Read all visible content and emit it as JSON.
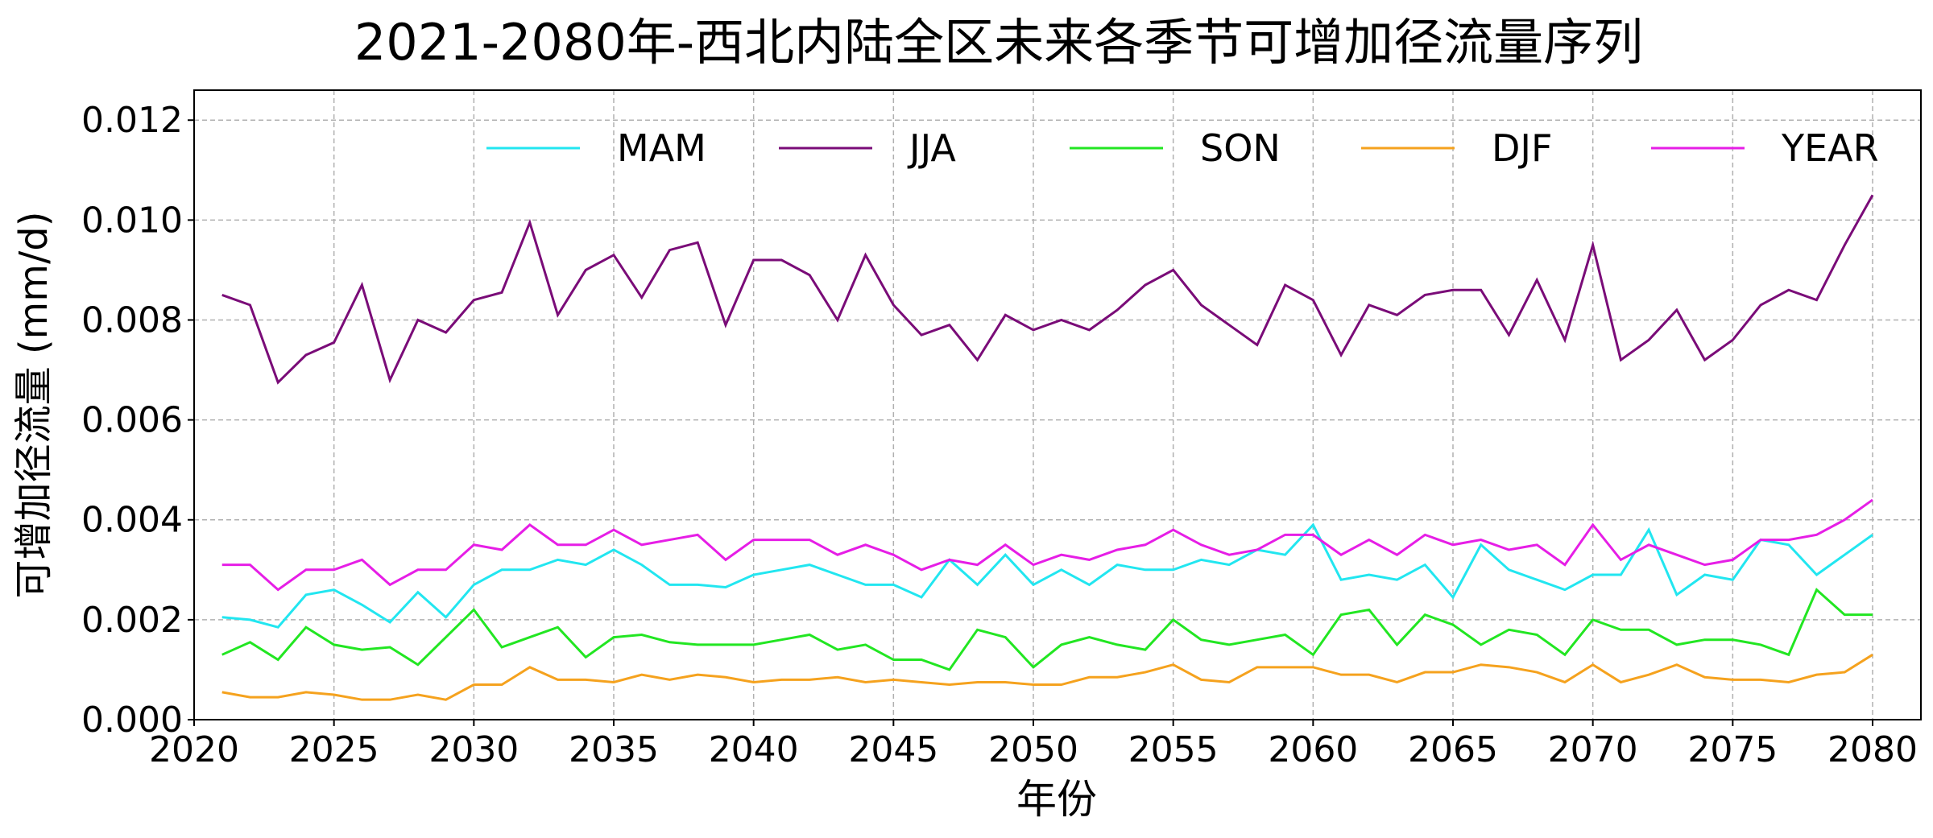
{
  "chart_data": {
    "type": "line",
    "title": "2021-2080年-西北内陆全区未来各季节可增加径流量序列",
    "xlabel": "年份",
    "ylabel": "可增加径流量 (mm/d)",
    "xlim": [
      2020,
      2082
    ],
    "ylim": [
      0,
      0.0126
    ],
    "xticks": [
      2020,
      2025,
      2030,
      2035,
      2040,
      2045,
      2050,
      2055,
      2060,
      2065,
      2070,
      2075,
      2080
    ],
    "yticks": [
      "0.000",
      "0.002",
      "0.004",
      "0.006",
      "0.008",
      "0.010",
      "0.012"
    ],
    "grid": true,
    "legend_position": "top",
    "x_start": 2021,
    "series": [
      {
        "name": "MAM",
        "color": "#22e6f0",
        "values": [
          0.00205,
          0.002,
          0.00185,
          0.0025,
          0.0026,
          0.0023,
          0.00195,
          0.00255,
          0.00205,
          0.0027,
          0.003,
          0.003,
          0.0032,
          0.0031,
          0.0034,
          0.0031,
          0.0027,
          0.0027,
          0.00265,
          0.0029,
          0.003,
          0.0031,
          0.0029,
          0.0027,
          0.0027,
          0.00245,
          0.0032,
          0.0027,
          0.0033,
          0.0027,
          0.003,
          0.0027,
          0.0031,
          0.003,
          0.003,
          0.0032,
          0.0031,
          0.0034,
          0.0033,
          0.0039,
          0.0028,
          0.0029,
          0.0028,
          0.0031,
          0.00245,
          0.0035,
          0.003,
          0.0028,
          0.0026,
          0.0029,
          0.0029,
          0.0038,
          0.0025,
          0.0029,
          0.0028,
          0.0036,
          0.0035,
          0.0029,
          0.0033,
          0.0037
        ]
      },
      {
        "name": "JJA",
        "color": "#7a0c78",
        "values": [
          0.0085,
          0.0083,
          0.00675,
          0.0073,
          0.00755,
          0.0087,
          0.0068,
          0.008,
          0.00775,
          0.0084,
          0.00855,
          0.00995,
          0.0081,
          0.009,
          0.0093,
          0.00845,
          0.0094,
          0.00955,
          0.0079,
          0.0092,
          0.0092,
          0.0089,
          0.008,
          0.0093,
          0.0083,
          0.0077,
          0.0079,
          0.0072,
          0.0081,
          0.0078,
          0.008,
          0.0078,
          0.0082,
          0.0087,
          0.009,
          0.0083,
          0.0079,
          0.0075,
          0.0087,
          0.0084,
          0.0073,
          0.0083,
          0.0081,
          0.0085,
          0.0086,
          0.0086,
          0.0077,
          0.0088,
          0.0076,
          0.0095,
          0.0072,
          0.0076,
          0.0082,
          0.0072,
          0.0076,
          0.0083,
          0.0086,
          0.0084,
          0.0095,
          0.0105
        ]
      },
      {
        "name": "SON",
        "color": "#22e622",
        "values": [
          0.0013,
          0.00155,
          0.0012,
          0.00185,
          0.0015,
          0.0014,
          0.00145,
          0.0011,
          0.00165,
          0.0022,
          0.00145,
          0.00165,
          0.00185,
          0.00125,
          0.00165,
          0.0017,
          0.00155,
          0.0015,
          0.0015,
          0.0015,
          0.0016,
          0.0017,
          0.0014,
          0.0015,
          0.0012,
          0.0012,
          0.001,
          0.0018,
          0.00165,
          0.00105,
          0.0015,
          0.00165,
          0.0015,
          0.0014,
          0.002,
          0.0016,
          0.0015,
          0.0016,
          0.0017,
          0.0013,
          0.0021,
          0.0022,
          0.0015,
          0.0021,
          0.0019,
          0.0015,
          0.0018,
          0.0017,
          0.0013,
          0.002,
          0.0018,
          0.0018,
          0.0015,
          0.0016,
          0.0016,
          0.0015,
          0.0013,
          0.0026,
          0.0021,
          0.0021
        ]
      },
      {
        "name": "DJF",
        "color": "#f5a21e",
        "values": [
          0.00055,
          0.00045,
          0.00045,
          0.00055,
          0.0005,
          0.0004,
          0.0004,
          0.0005,
          0.0004,
          0.0007,
          0.0007,
          0.00105,
          0.0008,
          0.0008,
          0.00075,
          0.0009,
          0.0008,
          0.0009,
          0.00085,
          0.00075,
          0.0008,
          0.0008,
          0.00085,
          0.00075,
          0.0008,
          0.00075,
          0.0007,
          0.00075,
          0.00075,
          0.0007,
          0.0007,
          0.00085,
          0.00085,
          0.00095,
          0.0011,
          0.0008,
          0.00075,
          0.00105,
          0.00105,
          0.00105,
          0.0009,
          0.0009,
          0.00075,
          0.00095,
          0.00095,
          0.0011,
          0.00105,
          0.00095,
          0.00075,
          0.0011,
          0.00075,
          0.0009,
          0.0011,
          0.00085,
          0.0008,
          0.0008,
          0.00075,
          0.0009,
          0.00095,
          0.0013
        ]
      },
      {
        "name": "YEAR",
        "color": "#e61ee6",
        "values": [
          0.0031,
          0.0031,
          0.0026,
          0.003,
          0.003,
          0.0032,
          0.0027,
          0.003,
          0.003,
          0.0035,
          0.0034,
          0.0039,
          0.0035,
          0.0035,
          0.0038,
          0.0035,
          0.0036,
          0.0037,
          0.0032,
          0.0036,
          0.0036,
          0.0036,
          0.0033,
          0.0035,
          0.0033,
          0.003,
          0.0032,
          0.0031,
          0.0035,
          0.0031,
          0.0033,
          0.0032,
          0.0034,
          0.0035,
          0.0038,
          0.0035,
          0.0033,
          0.0034,
          0.0037,
          0.0037,
          0.0033,
          0.0036,
          0.0033,
          0.0037,
          0.0035,
          0.0036,
          0.0034,
          0.0035,
          0.0031,
          0.0039,
          0.0032,
          0.0035,
          0.0033,
          0.0031,
          0.0032,
          0.0036,
          0.0036,
          0.0037,
          0.004,
          0.0044
        ]
      }
    ]
  }
}
